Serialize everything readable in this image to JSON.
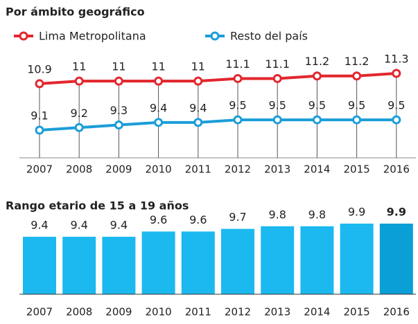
{
  "chart_data": [
    {
      "type": "line",
      "title": "Por ámbito geográfico",
      "categories": [
        "2007",
        "2008",
        "2009",
        "2010",
        "2011",
        "2012",
        "2013",
        "2014",
        "2015",
        "2016"
      ],
      "series": [
        {
          "name": "Lima Metropolitana",
          "color": "#e3262d",
          "values": [
            10.9,
            11,
            11,
            11,
            11,
            11.1,
            11.1,
            11.2,
            11.2,
            11.3
          ]
        },
        {
          "name": "Resto del país",
          "color": "#1a9ed9",
          "values": [
            9.1,
            9.2,
            9.3,
            9.4,
            9.4,
            9.5,
            9.5,
            9.5,
            9.5,
            9.5
          ]
        }
      ]
    },
    {
      "type": "bar",
      "title": "Rango etario de 15 a 19 años",
      "categories": [
        "2007",
        "2008",
        "2009",
        "2010",
        "2011",
        "2012",
        "2013",
        "2014",
        "2015",
        "2016"
      ],
      "values": [
        9.4,
        9.4,
        9.4,
        9.6,
        9.6,
        9.7,
        9.8,
        9.8,
        9.9,
        9.9
      ],
      "colors": [
        "#1bb9ef",
        "#1bb9ef",
        "#1bb9ef",
        "#1bb9ef",
        "#1bb9ef",
        "#1bb9ef",
        "#1bb9ef",
        "#1bb9ef",
        "#1bb9ef",
        "#0b9fd8"
      ]
    }
  ]
}
